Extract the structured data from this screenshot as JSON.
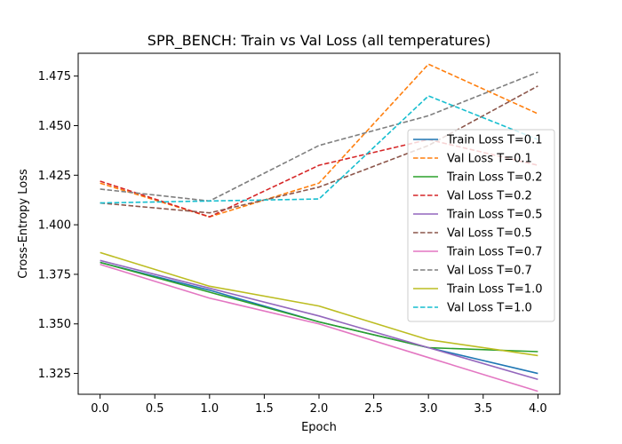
{
  "chart_data": {
    "type": "line",
    "title": "SPR_BENCH: Train vs Val Loss (all temperatures)",
    "xlabel": "Epoch",
    "ylabel": "Cross-Entropy Loss",
    "xlim": [
      -0.2,
      4.2
    ],
    "ylim": [
      1.3145,
      1.4865
    ],
    "x": [
      0,
      1,
      2,
      3,
      4
    ],
    "xticks": [
      0.0,
      0.5,
      1.0,
      1.5,
      2.0,
      2.5,
      3.0,
      3.5,
      4.0
    ],
    "xtick_labels": [
      "0.0",
      "0.5",
      "1.0",
      "1.5",
      "2.0",
      "2.5",
      "3.0",
      "3.5",
      "4.0"
    ],
    "yticks": [
      1.325,
      1.35,
      1.375,
      1.4,
      1.425,
      1.45,
      1.475
    ],
    "ytick_labels": [
      "1.325",
      "1.350",
      "1.375",
      "1.400",
      "1.425",
      "1.450",
      "1.475"
    ],
    "grid": false,
    "legend_position": "center-right",
    "series": [
      {
        "name": "Train Loss T=0.1",
        "color": "#1f77b4",
        "style": "solid",
        "values": [
          1.381,
          1.367,
          1.351,
          1.338,
          1.325
        ]
      },
      {
        "name": "Val Loss T=0.1",
        "color": "#ff7f0e",
        "style": "dashed",
        "values": [
          1.421,
          1.404,
          1.421,
          1.481,
          1.456
        ]
      },
      {
        "name": "Train Loss T=0.2",
        "color": "#2ca02c",
        "style": "solid",
        "values": [
          1.381,
          1.366,
          1.351,
          1.338,
          1.336
        ]
      },
      {
        "name": "Val Loss T=0.2",
        "color": "#d62728",
        "style": "dashed",
        "values": [
          1.422,
          1.404,
          1.43,
          1.443,
          1.43
        ]
      },
      {
        "name": "Train Loss T=0.5",
        "color": "#9467bd",
        "style": "solid",
        "values": [
          1.382,
          1.368,
          1.354,
          1.338,
          1.322
        ]
      },
      {
        "name": "Val Loss T=0.5",
        "color": "#8c564b",
        "style": "dashed",
        "values": [
          1.411,
          1.406,
          1.419,
          1.44,
          1.47
        ]
      },
      {
        "name": "Train Loss T=0.7",
        "color": "#e377c2",
        "style": "solid",
        "values": [
          1.38,
          1.363,
          1.35,
          1.333,
          1.316
        ]
      },
      {
        "name": "Val Loss T=0.7",
        "color": "#7f7f7f",
        "style": "dashed",
        "values": [
          1.418,
          1.412,
          1.44,
          1.455,
          1.477
        ]
      },
      {
        "name": "Train Loss T=1.0",
        "color": "#bcbd22",
        "style": "solid",
        "values": [
          1.386,
          1.369,
          1.359,
          1.342,
          1.334
        ]
      },
      {
        "name": "Val Loss T=1.0",
        "color": "#17becf",
        "style": "dashed",
        "values": [
          1.411,
          1.412,
          1.413,
          1.465,
          1.443
        ]
      }
    ]
  }
}
